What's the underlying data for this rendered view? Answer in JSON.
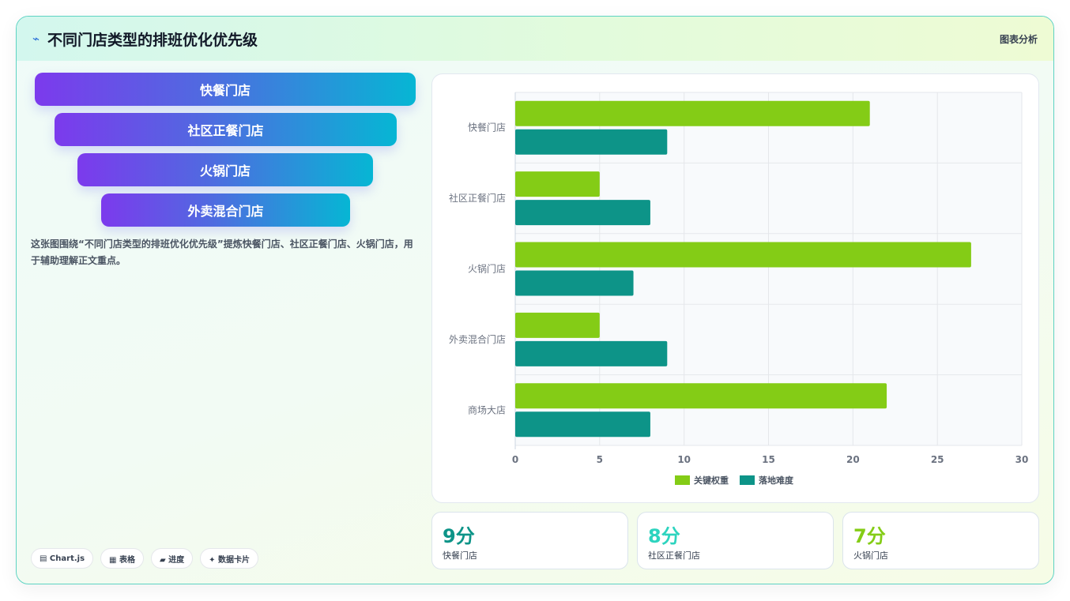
{
  "header": {
    "icon": "lightning-icon",
    "title": "不同门店类型的排班优化优先级",
    "tag": "图表分析"
  },
  "pyramid": [
    "快餐门店",
    "社区正餐门店",
    "火锅门店",
    "外卖混合门店"
  ],
  "description": "这张图围绕“不同门店类型的排班优化优先级”提炼快餐门店、社区正餐门店、火锅门店，用于辅助理解正文重点。",
  "chips": [
    "▤ Chart.js",
    "▦ 表格",
    "▰ 进度",
    "✦ 数据卡片"
  ],
  "chart_data": {
    "type": "bar",
    "orientation": "horizontal",
    "categories": [
      "快餐门店",
      "社区正餐门店",
      "火锅门店",
      "外卖混合门店",
      "商场大店"
    ],
    "series": [
      {
        "name": "关键权重",
        "values": [
          21,
          5,
          27,
          5,
          22
        ],
        "color": "#84cc16"
      },
      {
        "name": "落地难度",
        "values": [
          9,
          8,
          7,
          9,
          8
        ],
        "color": "#0d9488"
      }
    ],
    "xlim": [
      0,
      30
    ],
    "xticks": [
      0,
      5,
      10,
      15,
      20,
      25,
      30
    ],
    "grid": true,
    "legend": "bottom"
  },
  "stats": [
    {
      "value": "9分",
      "label": "快餐门店",
      "color": "#0d9488"
    },
    {
      "value": "8分",
      "label": "社区正餐门店",
      "color": "#2dd4bf"
    },
    {
      "value": "7分",
      "label": "火锅门店",
      "color": "#84cc16"
    }
  ]
}
